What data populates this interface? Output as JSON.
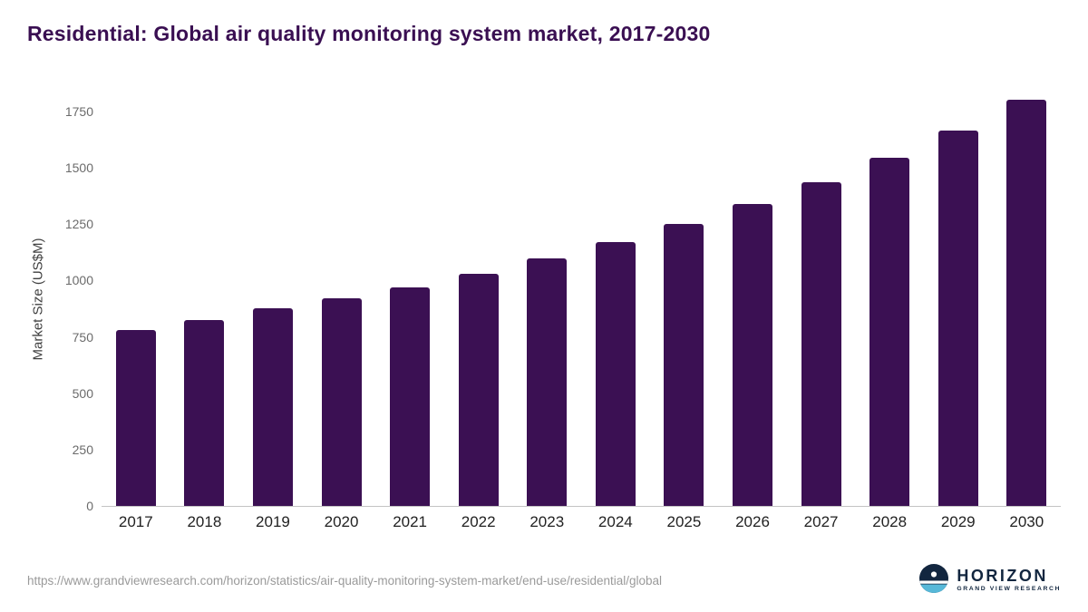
{
  "title": "Residential: Global air quality monitoring system market, 2017-2030",
  "colors": {
    "bar": "#3b1053",
    "title": "#3a0f52",
    "axis_line": "#c4c4c4",
    "tick_text": "#6b6b6b",
    "x_label_text": "#222222",
    "logo_navy": "#12263f",
    "logo_blue": "#57b8d8"
  },
  "chart_data": {
    "type": "bar",
    "title": "Residential: Global air quality monitoring system market, 2017-2030",
    "xlabel": "",
    "ylabel": "Market Size (US$M)",
    "categories": [
      "2017",
      "2018",
      "2019",
      "2020",
      "2021",
      "2022",
      "2023",
      "2024",
      "2025",
      "2026",
      "2027",
      "2028",
      "2029",
      "2030"
    ],
    "values": [
      780,
      825,
      875,
      920,
      970,
      1030,
      1100,
      1170,
      1250,
      1340,
      1435,
      1545,
      1665,
      1800
    ],
    "yticks": [
      0,
      250,
      500,
      750,
      1000,
      1250,
      1500,
      1750
    ],
    "ylim": [
      0,
      1850
    ],
    "grid": false,
    "legend_position": "none",
    "bar_color": "#3b1053"
  },
  "footer": {
    "source_url": "https://www.grandviewresearch.com/horizon/statistics/air-quality-monitoring-system-market/end-use/residential/global",
    "logo_name": "HORIZON",
    "logo_subtext": "GRAND VIEW RESEARCH"
  }
}
